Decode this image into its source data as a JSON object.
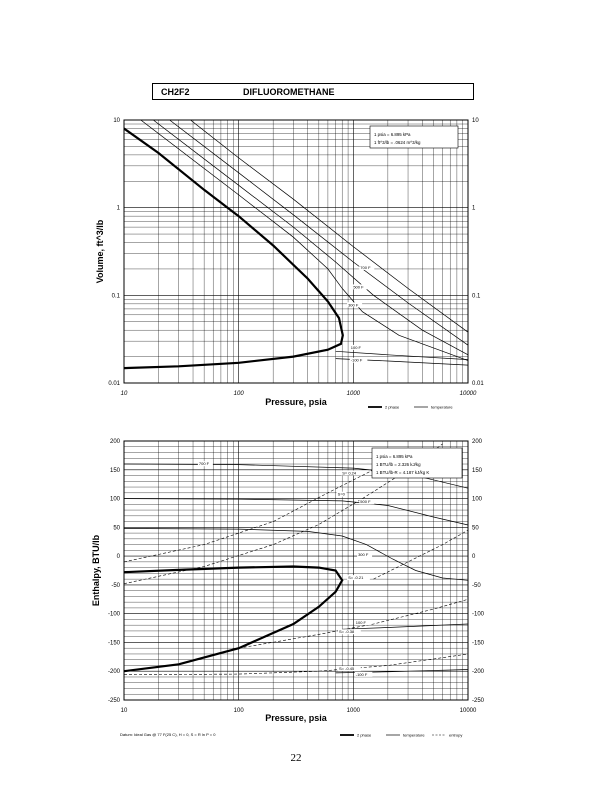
{
  "page": {
    "compound_code": "CH2F2",
    "compound_name": "DIFLUOROMETHANE",
    "page_number": "22",
    "datum_note": "Datum: Ideal Gas @ 77 F(25 C), H = 0, S = R ln P = 0"
  },
  "colors": {
    "line": "#000000",
    "grid": "#000000",
    "background": "#ffffff"
  },
  "chart_data": [
    {
      "type": "line",
      "ylabel": "Volume,  ft^3/lb",
      "xlabel": "Pressure,  psia",
      "xscale": "log",
      "yscale": "log",
      "xlim": [
        10,
        10000
      ],
      "ylim": [
        0.01,
        10
      ],
      "x_ticks": [
        "10",
        "100",
        "1000",
        "10000"
      ],
      "y_ticks": [
        "0.01",
        "0.1",
        "1",
        "10"
      ],
      "y_ticks_right": [
        "0.01",
        "0.1",
        "1",
        "10"
      ],
      "conversion_box": [
        "1 psia = 6.895 kPa",
        "1 ft^3/lb = .0624 m^3/kg"
      ],
      "legend": [
        "2 phase",
        "temperature"
      ],
      "legend_placement": "bottom-right",
      "grid": true,
      "series": [
        {
          "kind": "two-phase",
          "points": [
            [
              10,
              8
            ],
            [
              20,
              4.2
            ],
            [
              50,
              1.6
            ],
            [
              100,
              0.8
            ],
            [
              200,
              0.37
            ],
            [
              400,
              0.155
            ],
            [
              600,
              0.085
            ],
            [
              750,
              0.055
            ],
            [
              810,
              0.035
            ],
            [
              780,
              0.028
            ],
            [
              600,
              0.024
            ],
            [
              300,
              0.02
            ],
            [
              100,
              0.017
            ],
            [
              30,
              0.0155
            ],
            [
              10,
              0.0148
            ]
          ]
        },
        {
          "kind": "isotherm",
          "points": [
            [
              38,
              10
            ],
            [
              100,
              3.7
            ],
            [
              300,
              1.25
            ],
            [
              1000,
              0.36
            ],
            [
              3000,
              0.12
            ],
            [
              10000,
              0.038
            ]
          ]
        },
        {
          "kind": "isotherm",
          "points": [
            [
              25,
              10
            ],
            [
              100,
              2.5
            ],
            [
              300,
              0.83
            ],
            [
              1000,
              0.24
            ],
            [
              3000,
              0.082
            ],
            [
              10000,
              0.027
            ]
          ]
        },
        {
          "kind": "isotherm",
          "points": [
            [
              18,
              10
            ],
            [
              100,
              1.8
            ],
            [
              300,
              0.6
            ],
            [
              700,
              0.24
            ],
            [
              1500,
              0.1
            ],
            [
              4000,
              0.04
            ],
            [
              10000,
              0.021
            ]
          ]
        },
        {
          "kind": "isotherm",
          "points": [
            [
              14,
              10
            ],
            [
              100,
              1.4
            ],
            [
              300,
              0.46
            ],
            [
              600,
              0.2
            ],
            [
              800,
              0.12
            ],
            [
              1200,
              0.065
            ],
            [
              2500,
              0.035
            ],
            [
              10000,
              0.018
            ]
          ]
        },
        {
          "kind": "isotherm",
          "points": [
            [
              700,
              0.023
            ],
            [
              2000,
              0.021
            ],
            [
              10000,
              0.0185
            ]
          ]
        },
        {
          "kind": "isotherm",
          "points": [
            [
              700,
              0.019
            ],
            [
              2000,
              0.0178
            ],
            [
              10000,
              0.016
            ]
          ]
        }
      ],
      "annotations": [
        {
          "text": "700 F",
          "x": 1150,
          "y": 0.2
        },
        {
          "text": "500 F",
          "x": 1000,
          "y": 0.12
        },
        {
          "text": "300 F",
          "x": 900,
          "y": 0.075
        },
        {
          "text": "100 F",
          "x": 950,
          "y": 0.0245
        },
        {
          "text": "-100 F",
          "x": 950,
          "y": 0.0175
        }
      ]
    },
    {
      "type": "line",
      "ylabel": "Enthalpy,  BTU/lb",
      "xlabel": "Pressure,  psia",
      "xscale": "log",
      "xlim": [
        10,
        10000
      ],
      "ylim": [
        -250,
        200
      ],
      "x_ticks": [
        "10",
        "100",
        "1000",
        "10000"
      ],
      "y_ticks": [
        "-250",
        "-200",
        "-150",
        "-100",
        "-50",
        "0",
        "50",
        "100",
        "150",
        "200"
      ],
      "y_ticks_right": [
        "-250",
        "-200",
        "-150",
        "-100",
        "-50",
        "0",
        "50",
        "100",
        "150",
        "200"
      ],
      "conversion_box": [
        "1 psia = 6.895 kPa",
        "1 BTU/lb = 2.326 kJ/kg",
        "1 BTU/lb-R = 4.187 kJ/kg K"
      ],
      "legend": [
        "2 phase",
        "temperature",
        "entropy"
      ],
      "legend_placement": "bottom-right",
      "grid": true,
      "series": [
        {
          "kind": "two-phase",
          "points": [
            [
              10,
              -28
            ],
            [
              30,
              -24
            ],
            [
              100,
              -20
            ],
            [
              300,
              -18
            ],
            [
              500,
              -20
            ],
            [
              700,
              -25
            ],
            [
              800,
              -42
            ],
            [
              700,
              -62
            ],
            [
              500,
              -88
            ],
            [
              300,
              -118
            ],
            [
              100,
              -160
            ],
            [
              30,
              -188
            ],
            [
              10,
              -200
            ]
          ]
        },
        {
          "kind": "isotherm",
          "points": [
            [
              10,
              160
            ],
            [
              100,
              159
            ],
            [
              1000,
              153
            ],
            [
              3000,
              143
            ],
            [
              10000,
              118
            ]
          ]
        },
        {
          "kind": "isotherm",
          "points": [
            [
              10,
              100
            ],
            [
              100,
              99
            ],
            [
              800,
              96
            ],
            [
              2000,
              88
            ],
            [
              5000,
              68
            ],
            [
              10000,
              54
            ]
          ]
        },
        {
          "kind": "isotherm",
          "points": [
            [
              10,
              48
            ],
            [
              100,
              47
            ],
            [
              400,
              43
            ],
            [
              800,
              35
            ],
            [
              1300,
              20
            ],
            [
              2200,
              -5
            ],
            [
              3500,
              -25
            ],
            [
              6000,
              -38
            ],
            [
              10000,
              -42
            ]
          ]
        },
        {
          "kind": "isotherm",
          "points": [
            [
              800,
              -127
            ],
            [
              2000,
              -124
            ],
            [
              10000,
              -118
            ]
          ]
        },
        {
          "kind": "isotherm",
          "points": [
            [
              700,
              -203
            ],
            [
              2000,
              -201
            ],
            [
              10000,
              -197
            ]
          ]
        },
        {
          "kind": "entropy",
          "points": [
            [
              10,
              -10
            ],
            [
              50,
              20
            ],
            [
              200,
              60
            ],
            [
              600,
              110
            ],
            [
              1500,
              150
            ],
            [
              3000,
              180
            ]
          ]
        },
        {
          "kind": "entropy",
          "points": [
            [
              10,
              -48
            ],
            [
              50,
              -18
            ],
            [
              200,
              20
            ],
            [
              500,
              55
            ],
            [
              1200,
              100
            ],
            [
              3000,
              150
            ],
            [
              6000,
              195
            ]
          ]
        },
        {
          "kind": "entropy",
          "points": [
            [
              1500,
              -40
            ],
            [
              3000,
              -10
            ],
            [
              6000,
              20
            ],
            [
              10000,
              45
            ]
          ]
        },
        {
          "kind": "entropy",
          "points": [
            [
              100,
              -160
            ],
            [
              500,
              -136
            ],
            [
              1500,
              -118
            ],
            [
              5000,
              -92
            ],
            [
              10000,
              -75
            ]
          ]
        },
        {
          "kind": "entropy",
          "points": [
            [
              10,
              -206
            ],
            [
              100,
              -205
            ],
            [
              500,
              -200
            ],
            [
              2000,
              -190
            ],
            [
              10000,
              -170
            ]
          ]
        }
      ],
      "annotations": [
        {
          "text": "700 F",
          "x": 45,
          "y": 158
        },
        {
          "text": "500 F",
          "x": 1150,
          "y": 92
        },
        {
          "text": "300 F",
          "x": 1100,
          "y": 0
        },
        {
          "text": "100 F",
          "x": 1050,
          "y": -118
        },
        {
          "text": "-100 F",
          "x": 1050,
          "y": -208
        },
        {
          "text": "S= 0.24",
          "x": 800,
          "y": 142
        },
        {
          "text": "S=0",
          "x": 730,
          "y": 105
        },
        {
          "text": "S= -0.21",
          "x": 900,
          "y": -40
        },
        {
          "text": "S= -0.38",
          "x": 750,
          "y": -134
        },
        {
          "text": "S= -0.45",
          "x": 750,
          "y": -198
        }
      ]
    }
  ]
}
